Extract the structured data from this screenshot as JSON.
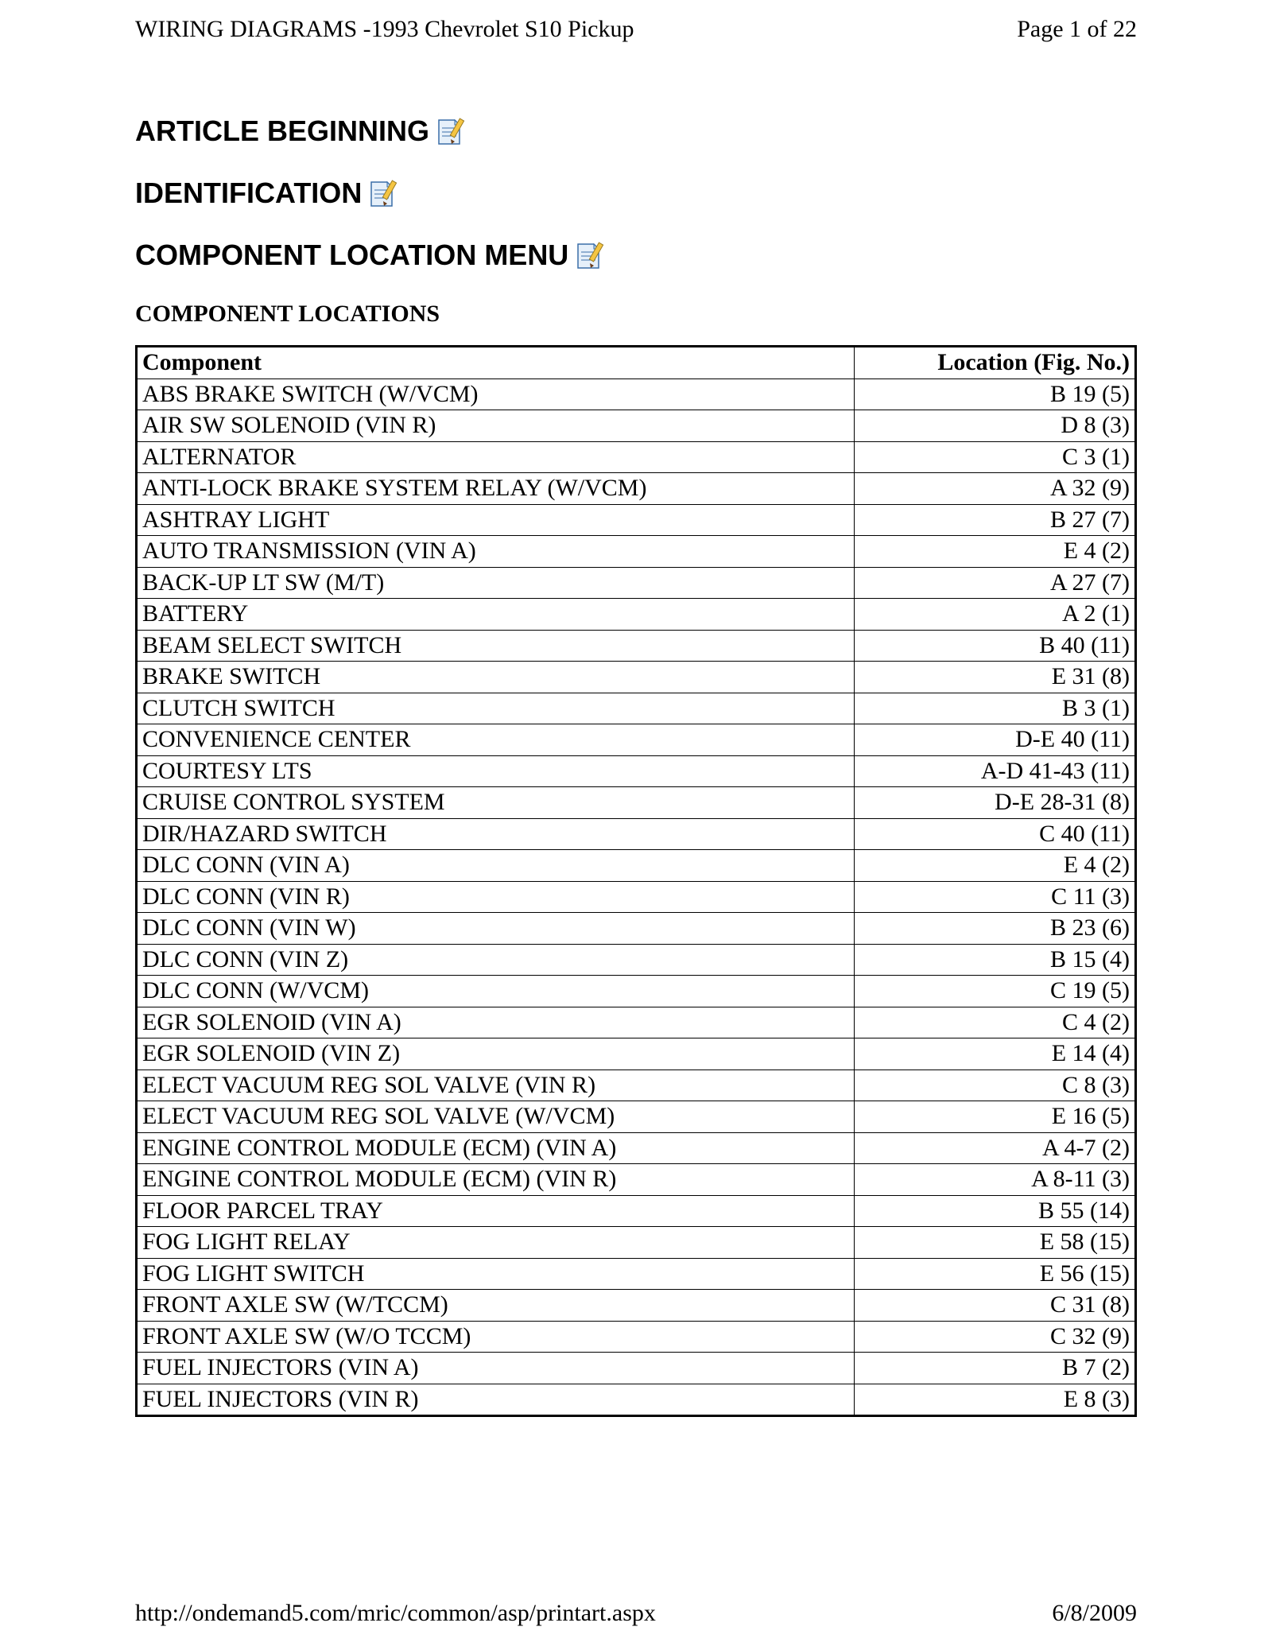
{
  "header": {
    "title": "WIRING DIAGRAMS -1993 Chevrolet S10 Pickup",
    "page_label": "Page 1 of 22"
  },
  "sections": {
    "h1": "ARTICLE BEGINNING",
    "h2": "IDENTIFICATION",
    "h3": "COMPONENT LOCATION MENU",
    "sub": "COMPONENT LOCATIONS"
  },
  "table": {
    "columns": {
      "component": "Component",
      "location": "Location (Fig. No.)"
    },
    "rows": [
      {
        "component": "ABS BRAKE SWITCH (W/VCM)",
        "location": "B 19 (5)"
      },
      {
        "component": "AIR SW SOLENOID (VIN R)",
        "location": "D 8 (3)"
      },
      {
        "component": "ALTERNATOR",
        "location": "C 3 (1)"
      },
      {
        "component": "ANTI-LOCK BRAKE SYSTEM RELAY (W/VCM)",
        "location": "A 32 (9)"
      },
      {
        "component": "ASHTRAY LIGHT",
        "location": "B 27 (7)"
      },
      {
        "component": "AUTO TRANSMISSION (VIN A)",
        "location": "E 4 (2)"
      },
      {
        "component": "BACK-UP LT SW (M/T)",
        "location": "A 27 (7)"
      },
      {
        "component": "BATTERY",
        "location": "A 2 (1)"
      },
      {
        "component": "BEAM SELECT SWITCH",
        "location": "B 40 (11)"
      },
      {
        "component": "BRAKE SWITCH",
        "location": "E 31 (8)"
      },
      {
        "component": "CLUTCH SWITCH",
        "location": "B 3 (1)"
      },
      {
        "component": "CONVENIENCE CENTER",
        "location": "D-E 40 (11)"
      },
      {
        "component": "COURTESY LTS",
        "location": "A-D 41-43 (11)"
      },
      {
        "component": "CRUISE CONTROL SYSTEM",
        "location": "D-E 28-31 (8)"
      },
      {
        "component": "DIR/HAZARD SWITCH",
        "location": "C 40 (11)"
      },
      {
        "component": "DLC CONN (VIN A)",
        "location": "E 4 (2)"
      },
      {
        "component": "DLC CONN (VIN R)",
        "location": "C 11 (3)"
      },
      {
        "component": "DLC CONN (VIN W)",
        "location": "B 23 (6)"
      },
      {
        "component": "DLC CONN (VIN Z)",
        "location": "B 15 (4)"
      },
      {
        "component": "DLC CONN (W/VCM)",
        "location": "C 19 (5)"
      },
      {
        "component": "EGR SOLENOID (VIN A)",
        "location": "C 4 (2)"
      },
      {
        "component": "EGR SOLENOID (VIN Z)",
        "location": "E 14 (4)"
      },
      {
        "component": "ELECT VACUUM REG SOL VALVE (VIN R)",
        "location": "C 8 (3)"
      },
      {
        "component": "ELECT VACUUM REG SOL VALVE (W/VCM)",
        "location": "E 16 (5)"
      },
      {
        "component": "ENGINE CONTROL MODULE (ECM) (VIN A)",
        "location": "A 4-7 (2)"
      },
      {
        "component": "ENGINE CONTROL MODULE (ECM) (VIN R)",
        "location": "A 8-11 (3)"
      },
      {
        "component": "FLOOR PARCEL TRAY",
        "location": "B 55 (14)"
      },
      {
        "component": "FOG LIGHT RELAY",
        "location": "E 58 (15)"
      },
      {
        "component": "FOG LIGHT SWITCH",
        "location": "E 56 (15)"
      },
      {
        "component": "FRONT AXLE SW (W/TCCM)",
        "location": "C 31 (8)"
      },
      {
        "component": "FRONT AXLE SW (W/O TCCM)",
        "location": "C 32 (9)"
      },
      {
        "component": "FUEL INJECTORS (VIN A)",
        "location": "B 7 (2)"
      },
      {
        "component": "FUEL INJECTORS (VIN R)",
        "location": "E 8 (3)"
      }
    ]
  },
  "footer": {
    "url": "http://ondemand5.com/mric/common/asp/printart.aspx",
    "date": "6/8/2009"
  },
  "icon_colors": {
    "paper_fill": "#e6f0fa",
    "paper_stroke": "#3a6ea8",
    "fold_fill": "#b7d2ea",
    "pencil_body": "#f5c542",
    "pencil_tip": "#6b3e1a",
    "pencil_stroke": "#9a7a1f"
  }
}
